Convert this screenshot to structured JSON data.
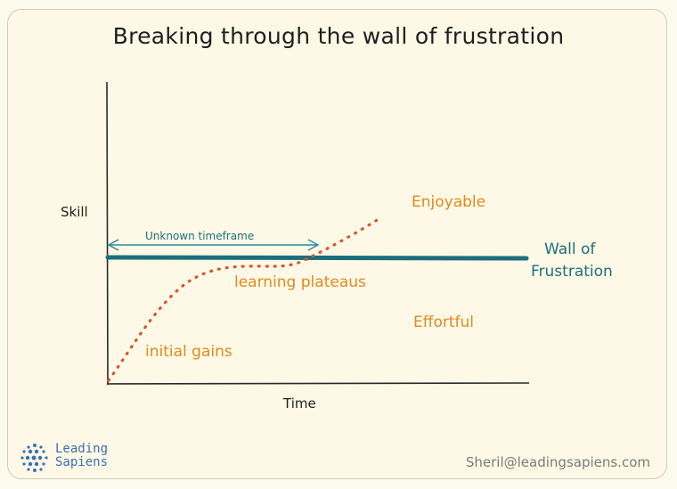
{
  "title": "Breaking through the wall of frustration",
  "axes": {
    "y_label": "Skill",
    "x_label": "Time"
  },
  "annotations": {
    "timeframe": "Unknown timeframe",
    "wall_line1": "Wall of",
    "wall_line2": "Frustration",
    "enjoyable": "Enjoyable",
    "effortful": "Effortful",
    "plateaus": "learning plateaus",
    "initial_gains": "initial gains"
  },
  "brand": {
    "line1": "Leading",
    "line2": "Sapiens"
  },
  "footer": {
    "email": "Sheril@leadingsapiens.com"
  },
  "colors": {
    "curve": "#d9562a",
    "wall": "#1d6e7d",
    "labels_orange": "#e08a1e",
    "arrow": "#2a8a9a"
  }
}
